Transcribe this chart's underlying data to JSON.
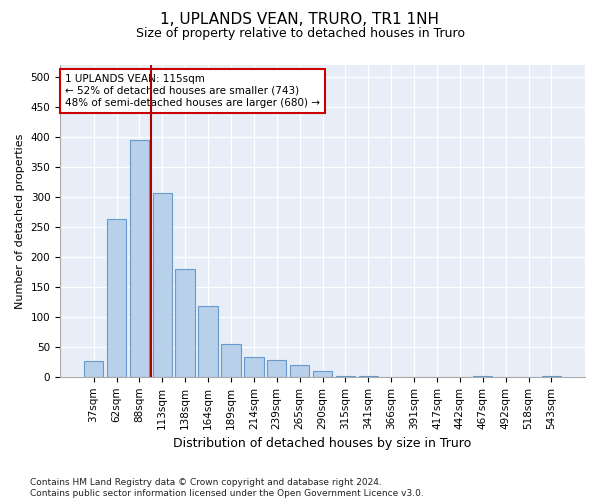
{
  "title": "1, UPLANDS VEAN, TRURO, TR1 1NH",
  "subtitle": "Size of property relative to detached houses in Truro",
  "xlabel": "Distribution of detached houses by size in Truro",
  "ylabel": "Number of detached properties",
  "categories": [
    "37sqm",
    "62sqm",
    "88sqm",
    "113sqm",
    "138sqm",
    "164sqm",
    "189sqm",
    "214sqm",
    "239sqm",
    "265sqm",
    "290sqm",
    "315sqm",
    "341sqm",
    "366sqm",
    "391sqm",
    "417sqm",
    "442sqm",
    "467sqm",
    "492sqm",
    "518sqm",
    "543sqm"
  ],
  "values": [
    27,
    263,
    395,
    307,
    180,
    118,
    55,
    33,
    28,
    20,
    9,
    2,
    1,
    0,
    0,
    0,
    0,
    1,
    0,
    0,
    2
  ],
  "bar_color": "#b8d0ea",
  "bar_edge_color": "#6699cc",
  "vline_color": "#aa0000",
  "vline_x": 2.5,
  "annotation_text": "1 UPLANDS VEAN: 115sqm\n← 52% of detached houses are smaller (743)\n48% of semi-detached houses are larger (680) →",
  "annotation_box_color": "#ffffff",
  "annotation_box_edgecolor": "#cc0000",
  "ylim": [
    0,
    520
  ],
  "yticks": [
    0,
    50,
    100,
    150,
    200,
    250,
    300,
    350,
    400,
    450,
    500
  ],
  "footer": "Contains HM Land Registry data © Crown copyright and database right 2024.\nContains public sector information licensed under the Open Government Licence v3.0.",
  "background_color": "#e8eef8",
  "fig_background": "#ffffff",
  "title_fontsize": 11,
  "subtitle_fontsize": 9,
  "axis_fontsize": 7.5,
  "ylabel_fontsize": 8,
  "xlabel_fontsize": 9,
  "footer_fontsize": 6.5,
  "annotation_fontsize": 7.5
}
